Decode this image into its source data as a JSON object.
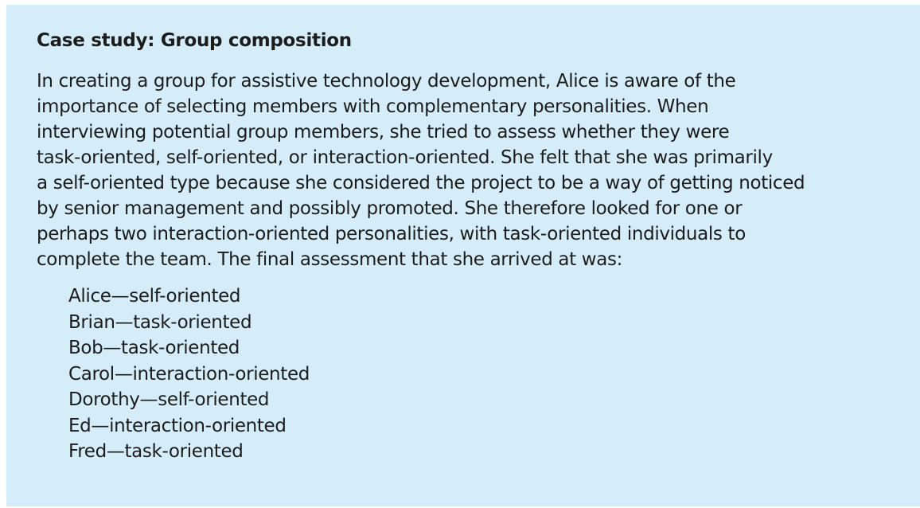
{
  "case_study": {
    "title": "Case study: Group composition",
    "paragraph_lines": [
      "In creating a group for assistive technology development, Alice is aware of the",
      "importance of selecting members with complementary personalities. When",
      "interviewing potential group members, she tried to assess whether they were",
      "task-oriented, self-oriented, or interaction-oriented. She felt that she was primarily",
      "a self-oriented type because she considered the project to be a way of getting noticed",
      "by senior management and possibly promoted. She therefore looked for one or",
      "perhaps two interaction-oriented personalities, with task-oriented individuals to",
      "complete the team. The final assessment that she arrived at was:"
    ],
    "members": [
      "Alice—self-oriented",
      "Brian—task-oriented",
      "Bob—task-oriented",
      "Carol—interaction-oriented",
      "Dorothy—self-oriented",
      "Ed—interaction-oriented",
      "Fred—task-oriented"
    ]
  },
  "colors": {
    "box_background": "#d4edf9",
    "text": "#1c1c1c"
  }
}
